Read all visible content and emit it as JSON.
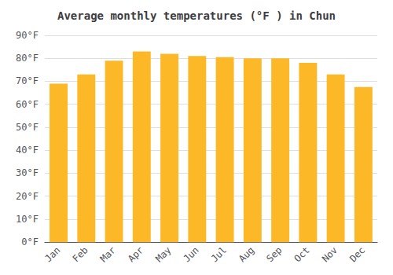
{
  "chart_data": {
    "type": "bar",
    "title": "Average monthly temperatures (°F ) in Chun",
    "categories": [
      "Jan",
      "Feb",
      "Mar",
      "Apr",
      "May",
      "Jun",
      "Jul",
      "Aug",
      "Sep",
      "Oct",
      "Nov",
      "Dec"
    ],
    "values": [
      69,
      73,
      79,
      83,
      82,
      81,
      80.5,
      80,
      80,
      78,
      73,
      67.5
    ],
    "color": "#FDB827",
    "ylim": [
      0,
      90
    ],
    "yticks": [
      {
        "value": 0,
        "label": "0°F"
      },
      {
        "value": 10,
        "label": "10°F"
      },
      {
        "value": 20,
        "label": "20°F"
      },
      {
        "value": 30,
        "label": "30°F"
      },
      {
        "value": 40,
        "label": "40°F"
      },
      {
        "value": 50,
        "label": "50°F"
      },
      {
        "value": 60,
        "label": "60°F"
      },
      {
        "value": 70,
        "label": "70°F"
      },
      {
        "value": 80,
        "label": "80°F"
      },
      {
        "value": 90,
        "label": "90°F"
      }
    ],
    "grid": true
  }
}
